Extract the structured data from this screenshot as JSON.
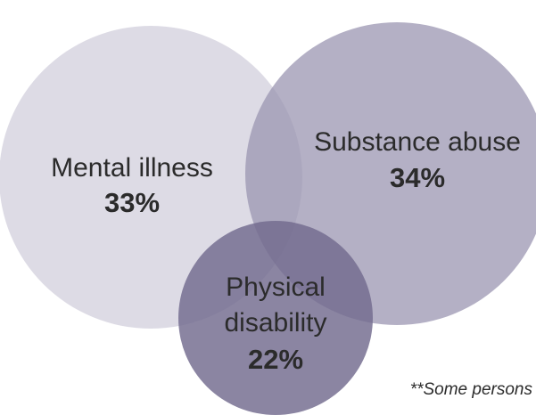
{
  "sets": [
    {
      "id": "mental-illness",
      "lines": [
        "Mental illness"
      ],
      "value": "33%",
      "fill": "#9c96b3",
      "opacity": 0.34
    },
    {
      "id": "substance-abuse",
      "lines": [
        "Substance abuse"
      ],
      "value": "34%",
      "fill": "#9a94b1",
      "opacity": 0.74
    },
    {
      "id": "physical-disability",
      "lines": [
        "Physical",
        "disability"
      ],
      "value": "22%",
      "fill": "#716a8e",
      "opacity": 0.82
    }
  ],
  "footnote": "**Some persons",
  "colors": {
    "text": "#2b2b2b",
    "background": "#ffffff"
  }
}
